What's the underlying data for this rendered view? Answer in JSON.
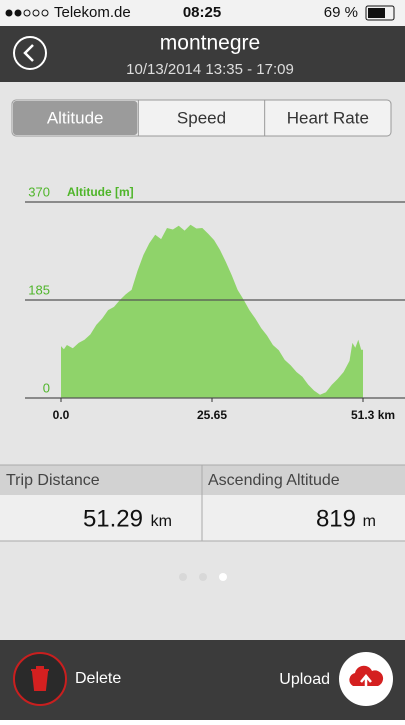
{
  "status_bar": {
    "carrier": "Telekom.de",
    "time": "08:25",
    "battery": "69 %"
  },
  "header": {
    "title": "montnegre",
    "subtitle": "10/13/2014 13:35 - 17:09"
  },
  "tabs": [
    "Altitude",
    "Speed",
    "Heart Rate"
  ],
  "chart_data": {
    "type": "area",
    "y_label": "Altitude [m]",
    "color": "#8fd36a",
    "x": [
      0,
      0.5,
      1,
      2,
      3,
      4,
      5,
      6,
      7,
      8,
      9,
      10,
      11,
      12,
      13,
      14,
      15,
      16,
      17,
      18,
      19,
      20,
      21,
      22,
      23,
      24,
      25,
      26,
      27,
      28,
      29,
      30,
      31,
      32,
      33,
      34,
      35,
      36,
      37,
      38,
      39,
      40,
      41,
      42,
      43,
      44,
      45,
      46,
      47,
      48,
      49,
      49.5,
      50,
      50.5,
      51,
      51.3
    ],
    "values": [
      98,
      92,
      100,
      94,
      104,
      110,
      120,
      138,
      150,
      166,
      172,
      185,
      196,
      204,
      240,
      270,
      292,
      308,
      300,
      321,
      318,
      325,
      316,
      327,
      320,
      321,
      310,
      298,
      280,
      257,
      232,
      204,
      186,
      166,
      150,
      132,
      118,
      100,
      90,
      72,
      62,
      49,
      40,
      25,
      14,
      6,
      11,
      25,
      36,
      49,
      70,
      104,
      95,
      110,
      91,
      91
    ],
    "xlim": [
      0,
      51.3
    ],
    "ylim": [
      0,
      370
    ],
    "xticks": [
      {
        "value": 0,
        "label": "0.0"
      },
      {
        "value": 25.65,
        "label": "25.65"
      },
      {
        "value": 51.3,
        "label": "51.3 km"
      }
    ],
    "yticks": [
      0,
      185,
      370
    ],
    "grid": true
  },
  "stats": [
    {
      "label": "Trip Distance",
      "value": 51.29,
      "unit": "km"
    },
    {
      "label": "Ascending Altitude",
      "value": 819,
      "unit": "m"
    }
  ],
  "footer": {
    "delete": "Delete",
    "upload": "Upload"
  }
}
